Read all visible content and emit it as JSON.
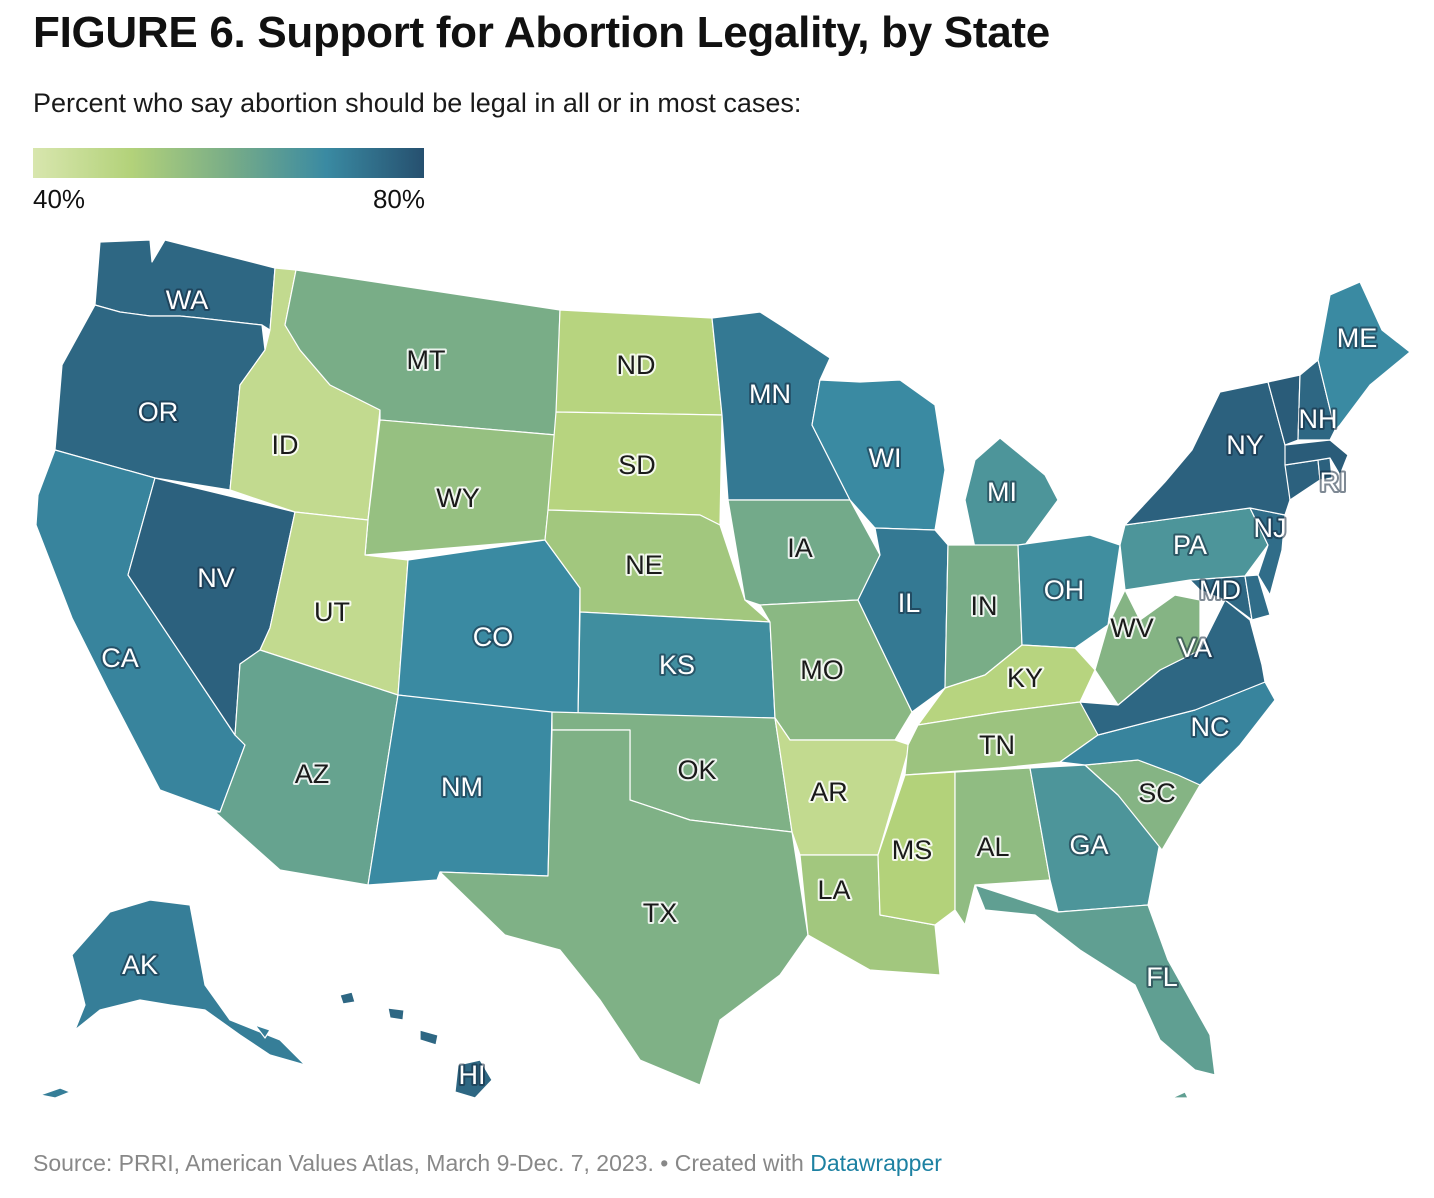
{
  "header": {
    "title": "FIGURE 6. Support for Abortion Legality, by State",
    "subtitle": "Percent who say abortion should be legal in all or in most cases:"
  },
  "legend": {
    "min_label": "40%",
    "max_label": "80%",
    "min_value": 40,
    "max_value": 80,
    "colors": [
      "#d8e6ae",
      "#b3d27a",
      "#79ad87",
      "#3a8aa2",
      "#26506f"
    ]
  },
  "footer": {
    "source": "Source: PRRI, American Values Atlas, March 9-Dec. 7, 2023.",
    "separator": " • ",
    "created_with": "Created with ",
    "tool": "Datawrapper"
  },
  "chart_data": {
    "type": "choropleth",
    "region": "United States",
    "value_label": "Percent who say abortion should be legal in all or in most cases",
    "scale": {
      "min": 40,
      "max": 80
    },
    "states": [
      {
        "abbr": "WA",
        "value": 76
      },
      {
        "abbr": "OR",
        "value": 76
      },
      {
        "abbr": "CA",
        "value": 71
      },
      {
        "abbr": "NV",
        "value": 77
      },
      {
        "abbr": "ID",
        "value": 46
      },
      {
        "abbr": "MT",
        "value": 60
      },
      {
        "abbr": "WY",
        "value": 55
      },
      {
        "abbr": "UT",
        "value": 46
      },
      {
        "abbr": "AZ",
        "value": 63
      },
      {
        "abbr": "CO",
        "value": 70
      },
      {
        "abbr": "NM",
        "value": 70
      },
      {
        "abbr": "ND",
        "value": 49
      },
      {
        "abbr": "SD",
        "value": 49
      },
      {
        "abbr": "NE",
        "value": 53
      },
      {
        "abbr": "KS",
        "value": 69
      },
      {
        "abbr": "OK",
        "value": 59
      },
      {
        "abbr": "TX",
        "value": 59
      },
      {
        "abbr": "MN",
        "value": 73
      },
      {
        "abbr": "IA",
        "value": 61
      },
      {
        "abbr": "MO",
        "value": 57
      },
      {
        "abbr": "AR",
        "value": 46
      },
      {
        "abbr": "LA",
        "value": 53
      },
      {
        "abbr": "WI",
        "value": 70
      },
      {
        "abbr": "IL",
        "value": 73
      },
      {
        "abbr": "MI",
        "value": 67
      },
      {
        "abbr": "IN",
        "value": 60
      },
      {
        "abbr": "OH",
        "value": 69
      },
      {
        "abbr": "KY",
        "value": 49
      },
      {
        "abbr": "TN",
        "value": 54
      },
      {
        "abbr": "MS",
        "value": 50
      },
      {
        "abbr": "AL",
        "value": 56
      },
      {
        "abbr": "GA",
        "value": 67
      },
      {
        "abbr": "FL",
        "value": 64
      },
      {
        "abbr": "SC",
        "value": 58
      },
      {
        "abbr": "NC",
        "value": 71
      },
      {
        "abbr": "VA",
        "value": 76
      },
      {
        "abbr": "WV",
        "value": 58
      },
      {
        "abbr": "MD",
        "value": 76
      },
      {
        "abbr": "DE",
        "value": 75
      },
      {
        "abbr": "PA",
        "value": 67
      },
      {
        "abbr": "NJ",
        "value": 75
      },
      {
        "abbr": "NY",
        "value": 77
      },
      {
        "abbr": "CT",
        "value": 77
      },
      {
        "abbr": "RI",
        "value": 77
      },
      {
        "abbr": "MA",
        "value": 78
      },
      {
        "abbr": "VT",
        "value": 78
      },
      {
        "abbr": "NH",
        "value": 76
      },
      {
        "abbr": "ME",
        "value": 70
      },
      {
        "abbr": "AK",
        "value": 72
      },
      {
        "abbr": "HI",
        "value": 76
      }
    ]
  }
}
